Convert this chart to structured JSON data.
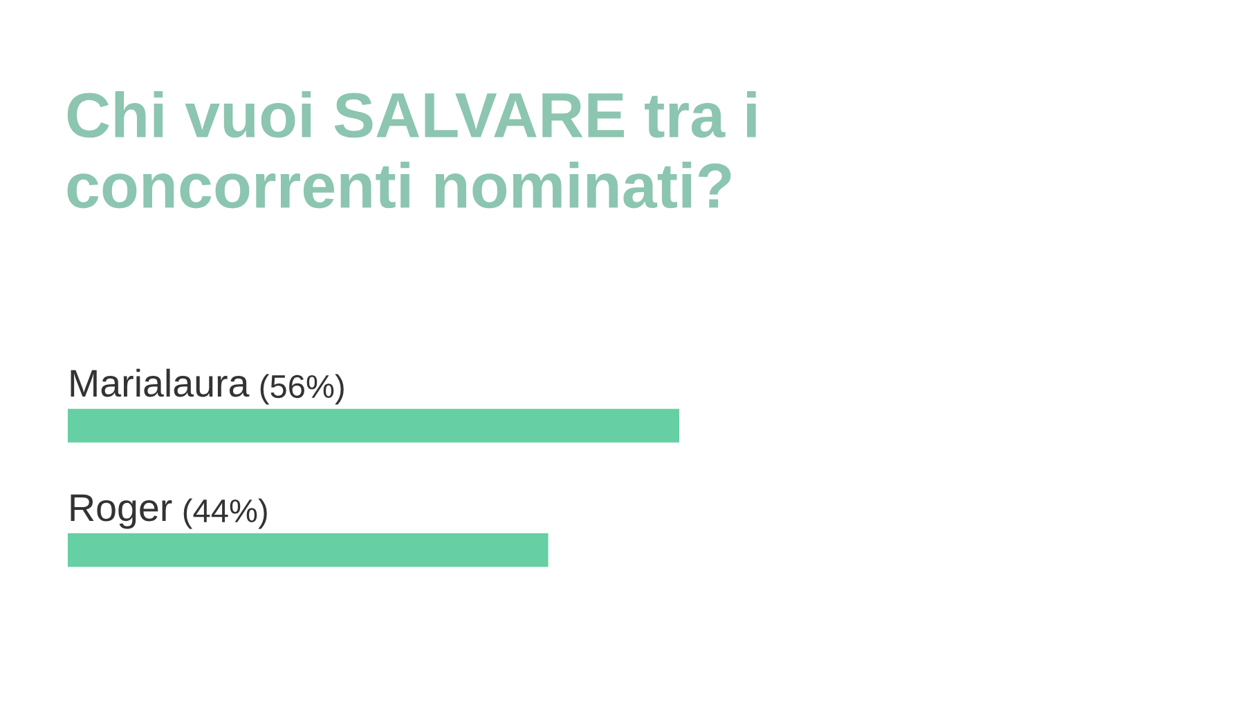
{
  "chart_data": {
    "type": "bar",
    "orientation": "horizontal",
    "title": "Chi vuoi SALVARE tra i\nconcorrenti nominati?",
    "categories": [
      "Marialaura",
      "Roger"
    ],
    "values": [
      56,
      44
    ],
    "value_labels": [
      "(56%)",
      "(44%)"
    ],
    "color": "#66d0a4"
  }
}
